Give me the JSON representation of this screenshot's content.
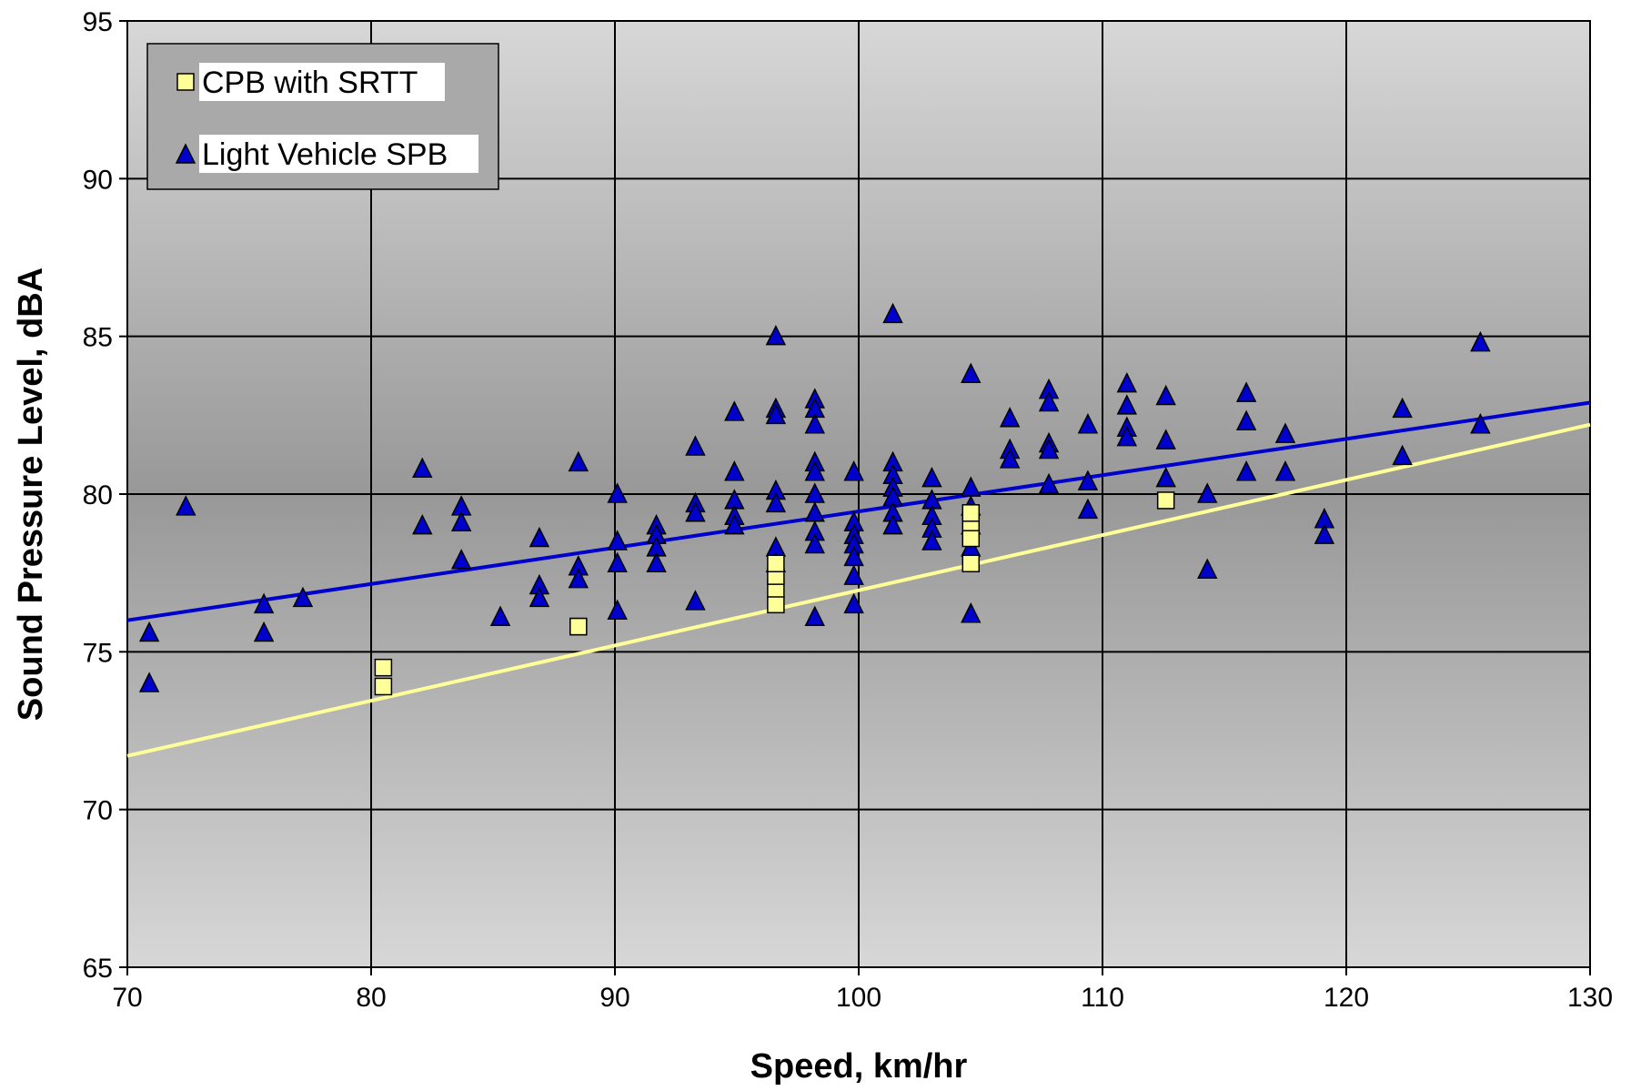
{
  "chart_data": {
    "type": "scatter",
    "title": "",
    "xlabel": "Speed, km/hr",
    "ylabel": "Sound Pressure Level, dBA",
    "xlim": [
      70,
      130
    ],
    "ylim": [
      65,
      95
    ],
    "xticks": [
      "70",
      "80",
      "90",
      "100",
      "110",
      "120",
      "130"
    ],
    "yticks": [
      "65",
      "70",
      "75",
      "80",
      "85",
      "90",
      "95"
    ],
    "grid": true,
    "legend_position": "top-left",
    "series": [
      {
        "name": "CPB with SRTT",
        "marker": "square",
        "color": "#ffff99",
        "points": [
          [
            80.5,
            74.5
          ],
          [
            80.5,
            73.9
          ],
          [
            88.5,
            75.8
          ],
          [
            88.5,
            75.8
          ],
          [
            96.6,
            76.5
          ],
          [
            96.6,
            77.0
          ],
          [
            96.6,
            77.4
          ],
          [
            96.6,
            77.8
          ],
          [
            104.6,
            77.8
          ],
          [
            104.6,
            78.6
          ],
          [
            104.6,
            79.1
          ],
          [
            104.6,
            79.4
          ],
          [
            112.6,
            79.8
          ]
        ],
        "trendline": {
          "x": [
            70,
            130
          ],
          "y": [
            71.7,
            82.2
          ],
          "color": "#ffff99"
        }
      },
      {
        "name": "Light Vehicle SPB",
        "marker": "triangle",
        "color": "#0000cc",
        "points": [
          [
            70.9,
            75.6
          ],
          [
            70.9,
            74.0
          ],
          [
            72.4,
            79.6
          ],
          [
            75.6,
            76.5
          ],
          [
            75.6,
            75.6
          ],
          [
            77.2,
            76.7
          ],
          [
            82.1,
            80.8
          ],
          [
            82.1,
            79.0
          ],
          [
            83.7,
            79.6
          ],
          [
            83.7,
            79.1
          ],
          [
            83.7,
            77.9
          ],
          [
            85.3,
            76.1
          ],
          [
            86.9,
            78.6
          ],
          [
            86.9,
            77.1
          ],
          [
            86.9,
            76.7
          ],
          [
            88.5,
            81.0
          ],
          [
            88.5,
            77.7
          ],
          [
            88.5,
            77.3
          ],
          [
            90.1,
            80.0
          ],
          [
            90.1,
            78.5
          ],
          [
            90.1,
            77.8
          ],
          [
            90.1,
            76.3
          ],
          [
            91.7,
            79.0
          ],
          [
            91.7,
            78.7
          ],
          [
            91.7,
            78.3
          ],
          [
            91.7,
            77.8
          ],
          [
            93.3,
            81.5
          ],
          [
            93.3,
            79.7
          ],
          [
            93.3,
            79.4
          ],
          [
            93.3,
            76.6
          ],
          [
            94.9,
            82.6
          ],
          [
            94.9,
            80.7
          ],
          [
            94.9,
            79.8
          ],
          [
            94.9,
            79.3
          ],
          [
            94.9,
            79.0
          ],
          [
            96.6,
            85.0
          ],
          [
            96.6,
            82.7
          ],
          [
            96.6,
            82.5
          ],
          [
            96.6,
            80.1
          ],
          [
            96.6,
            79.7
          ],
          [
            96.6,
            78.3
          ],
          [
            96.6,
            77.8
          ],
          [
            98.2,
            83.0
          ],
          [
            98.2,
            82.7
          ],
          [
            98.2,
            82.2
          ],
          [
            98.2,
            81.0
          ],
          [
            98.2,
            80.7
          ],
          [
            98.2,
            80.0
          ],
          [
            98.2,
            79.4
          ],
          [
            98.2,
            78.8
          ],
          [
            98.2,
            78.4
          ],
          [
            98.2,
            76.1
          ],
          [
            99.8,
            80.7
          ],
          [
            99.8,
            79.1
          ],
          [
            99.8,
            78.7
          ],
          [
            99.8,
            78.4
          ],
          [
            99.8,
            78.0
          ],
          [
            99.8,
            77.4
          ],
          [
            99.8,
            76.5
          ],
          [
            101.4,
            85.7
          ],
          [
            101.4,
            81.0
          ],
          [
            101.4,
            80.6
          ],
          [
            101.4,
            80.2
          ],
          [
            101.4,
            79.9
          ],
          [
            101.4,
            79.4
          ],
          [
            101.4,
            79.0
          ],
          [
            103.0,
            80.5
          ],
          [
            103.0,
            79.8
          ],
          [
            103.0,
            79.3
          ],
          [
            103.0,
            78.9
          ],
          [
            103.0,
            78.5
          ],
          [
            104.6,
            83.8
          ],
          [
            104.6,
            80.2
          ],
          [
            104.6,
            79.6
          ],
          [
            104.6,
            79.0
          ],
          [
            104.6,
            78.3
          ],
          [
            104.6,
            76.2
          ],
          [
            106.2,
            82.4
          ],
          [
            106.2,
            81.4
          ],
          [
            106.2,
            81.1
          ],
          [
            107.8,
            83.3
          ],
          [
            107.8,
            82.9
          ],
          [
            107.8,
            81.6
          ],
          [
            107.8,
            81.4
          ],
          [
            107.8,
            80.3
          ],
          [
            109.4,
            82.2
          ],
          [
            109.4,
            80.4
          ],
          [
            109.4,
            79.5
          ],
          [
            111.0,
            83.5
          ],
          [
            111.0,
            82.8
          ],
          [
            111.0,
            82.1
          ],
          [
            111.0,
            81.8
          ],
          [
            112.6,
            83.1
          ],
          [
            112.6,
            81.7
          ],
          [
            112.6,
            80.5
          ],
          [
            114.3,
            80.0
          ],
          [
            114.3,
            77.6
          ],
          [
            115.9,
            83.2
          ],
          [
            115.9,
            82.3
          ],
          [
            115.9,
            80.7
          ],
          [
            117.5,
            81.9
          ],
          [
            117.5,
            80.7
          ],
          [
            119.1,
            79.2
          ],
          [
            119.1,
            78.7
          ],
          [
            122.3,
            82.7
          ],
          [
            122.3,
            81.2
          ],
          [
            125.5,
            84.8
          ],
          [
            125.5,
            82.2
          ]
        ],
        "trendline": {
          "x": [
            70,
            130
          ],
          "y": [
            76.0,
            82.9
          ],
          "color": "#0000cc"
        }
      }
    ]
  }
}
